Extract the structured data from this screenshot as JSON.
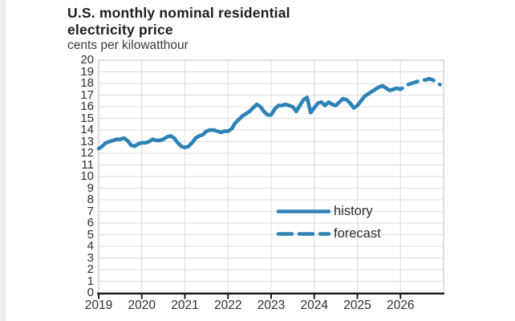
{
  "header": {
    "title": "U.S. monthly nominal residential electricity price",
    "subtitle": "cents per kilowatthour"
  },
  "colors": {
    "line": "#2e82b6",
    "grid": "#dcdcdc",
    "plot_border": "#c7c7c7",
    "axis": "#1b1b1b",
    "text": "#2e2e2e",
    "title_text": "#1b1d22"
  },
  "legend": {
    "history_label": "history",
    "forecast_label": "forecast"
  },
  "chart_data": {
    "type": "line",
    "title": "U.S. monthly nominal residential electricity price",
    "ylabel": "cents per kilowatthour",
    "ylim": [
      0,
      20
    ],
    "y_tick_step": 1,
    "y_ticks": [
      "20",
      "19",
      "18",
      "17",
      "16",
      "15",
      "14",
      "13",
      "12",
      "11",
      "10",
      "9",
      "8",
      "7",
      "6",
      "5",
      "4",
      "3",
      "2",
      "1",
      "0"
    ],
    "x_ticks": [
      "2019",
      "2020",
      "2021",
      "2022",
      "2023",
      "2024",
      "2025",
      "2026"
    ],
    "x_range_years": [
      2019,
      2027
    ],
    "grid": true,
    "legend_position": "inside-right",
    "series": [
      {
        "name": "history",
        "style": "solid",
        "start": "2019-01",
        "values": [
          12.4,
          12.6,
          12.9,
          13.0,
          13.1,
          13.2,
          13.2,
          13.3,
          13.1,
          12.7,
          12.6,
          12.8,
          12.9,
          12.9,
          13.0,
          13.2,
          13.1,
          13.1,
          13.2,
          13.4,
          13.5,
          13.3,
          12.9,
          12.6,
          12.5,
          12.6,
          12.9,
          13.3,
          13.5,
          13.6,
          13.9,
          14.0,
          14.0,
          13.9,
          13.8,
          13.9,
          13.9,
          14.1,
          14.6,
          14.9,
          15.2,
          15.4,
          15.6,
          15.9,
          16.2,
          16.0,
          15.6,
          15.3,
          15.3,
          15.8,
          16.1,
          16.1,
          16.2,
          16.1,
          16.0,
          15.6,
          16.1,
          16.6,
          16.8,
          15.5,
          15.9,
          16.3,
          16.4,
          16.1,
          16.4,
          16.2,
          16.1,
          16.4,
          16.7,
          16.6,
          16.3,
          15.9,
          16.1,
          16.5,
          16.9,
          17.1,
          17.3,
          17.5,
          17.7,
          17.8,
          17.6,
          17.4,
          17.5
        ]
      },
      {
        "name": "forecast",
        "style": "dashed",
        "start": "2025-11",
        "values": [
          17.5,
          17.6,
          17.5,
          17.7,
          17.9,
          18.0,
          18.1,
          18.2,
          18.3,
          18.3,
          18.4,
          18.3,
          18.1,
          17.9
        ]
      }
    ]
  }
}
